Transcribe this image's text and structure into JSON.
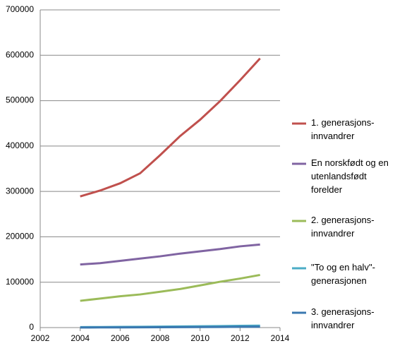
{
  "chart_data": {
    "type": "line",
    "x": [
      2004,
      2005,
      2006,
      2007,
      2008,
      2009,
      2010,
      2011,
      2012,
      2013
    ],
    "series": [
      {
        "name": "1. generasjons-innvandrer",
        "color": "#c0504d",
        "values": [
          289000,
          302000,
          318000,
          340000,
          380000,
          422000,
          458000,
          499000,
          545000,
          593000
        ]
      },
      {
        "name": "En norskfødt og en utenlandsfødt forelder",
        "color": "#8064a2",
        "values": [
          139000,
          142000,
          147000,
          152000,
          157000,
          163000,
          168000,
          173000,
          179000,
          183000
        ]
      },
      {
        "name": "2. generasjons-innvandrer",
        "color": "#9bbb59",
        "values": [
          59000,
          64000,
          69000,
          73000,
          79000,
          85000,
          93000,
          101000,
          108000,
          116000
        ]
      },
      {
        "name": "\"To og en halv\"-generasjonen",
        "color": "#4bacc6",
        "values": [
          1000,
          1200,
          1500,
          1800,
          2100,
          2500,
          2900,
          3300,
          3800,
          4300
        ]
      },
      {
        "name": "3. generasjons-innvandrer",
        "color": "#3a78b0",
        "values": [
          200,
          300,
          400,
          500,
          700,
          900,
          1100,
          1400,
          1700,
          2000
        ]
      }
    ],
    "xlim": [
      2002,
      2014
    ],
    "xticks": [
      2002,
      2004,
      2006,
      2008,
      2010,
      2012,
      2014
    ],
    "ylim": [
      0,
      700000
    ],
    "yticks": [
      0,
      100000,
      200000,
      300000,
      400000,
      500000,
      600000,
      700000
    ],
    "grid": true,
    "legend": "right"
  }
}
